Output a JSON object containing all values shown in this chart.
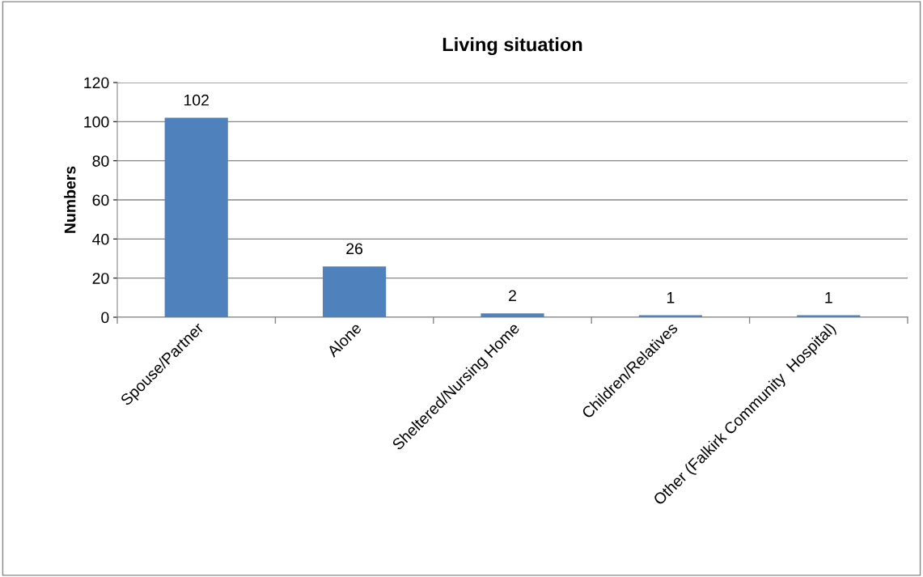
{
  "chart_data": {
    "type": "bar",
    "title": "Living situation",
    "ylabel": "Numbers",
    "categories": [
      "Spouse/Partner",
      "Alone",
      "Sheltered/Nursing Home",
      "Children/Relatives",
      "Other (Falkirk Community  Hospital)"
    ],
    "values": [
      102,
      26,
      2,
      1,
      1
    ],
    "color": "#4f81bd",
    "ylim": [
      0,
      120
    ],
    "yticks": [
      0,
      20,
      40,
      60,
      80,
      100,
      120
    ],
    "grid": "y",
    "data_labels": true
  }
}
